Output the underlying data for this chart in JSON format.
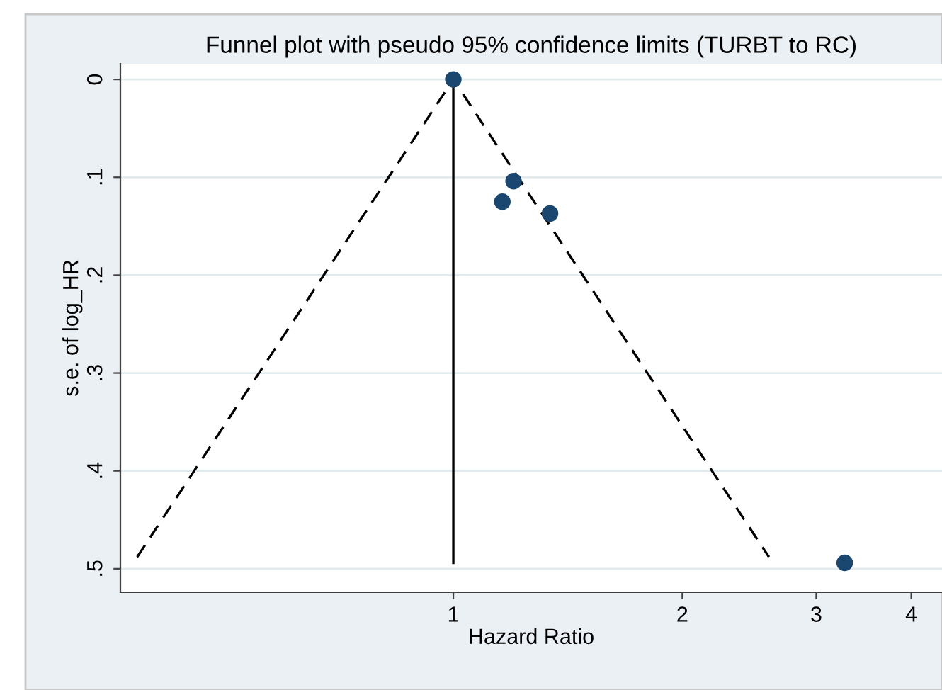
{
  "chart_data": {
    "type": "scatter",
    "title": "Funnel plot with pseudo 95% confidence limits (TURBT to RC)",
    "xlabel": "Hazard Ratio",
    "ylabel": "s.e. of log_HR",
    "log": "x",
    "grid": "y",
    "legend": false,
    "marker": "circle",
    "series": [
      {
        "color": "#1a476f",
        "x": [
          1.0,
          1.2,
          1.16,
          1.34,
          3.27
        ],
        "values": [
          0.0,
          0.104,
          0.125,
          0.137,
          0.494
        ]
      },
      {
        "type": "line",
        "color": "#000000",
        "line_style": "dashed",
        "marker": "none",
        "x": [
          0.384,
          1.0,
          2.6
        ],
        "values": [
          0.488,
          0.0,
          0.488
        ]
      },
      {
        "type": "line",
        "color": "#000000",
        "line_style": "solid",
        "marker": "none",
        "x": [
          1.0,
          1.0
        ],
        "values": [
          0.0,
          0.494
        ]
      }
    ],
    "xlim": [
      0.365,
      4.39
    ],
    "xticks": [
      1,
      2,
      3,
      4
    ],
    "ylim": [
      0.524,
      -0.016
    ],
    "yticks": [
      {
        "value": 0,
        "label": "0"
      },
      {
        "value": 0.1,
        "label": ".1"
      },
      {
        "value": 0.2,
        "label": ".2"
      },
      {
        "value": 0.3,
        "label": ".3"
      },
      {
        "value": 0.4,
        "label": ".4"
      },
      {
        "value": 0.5,
        "label": ".5"
      }
    ]
  }
}
